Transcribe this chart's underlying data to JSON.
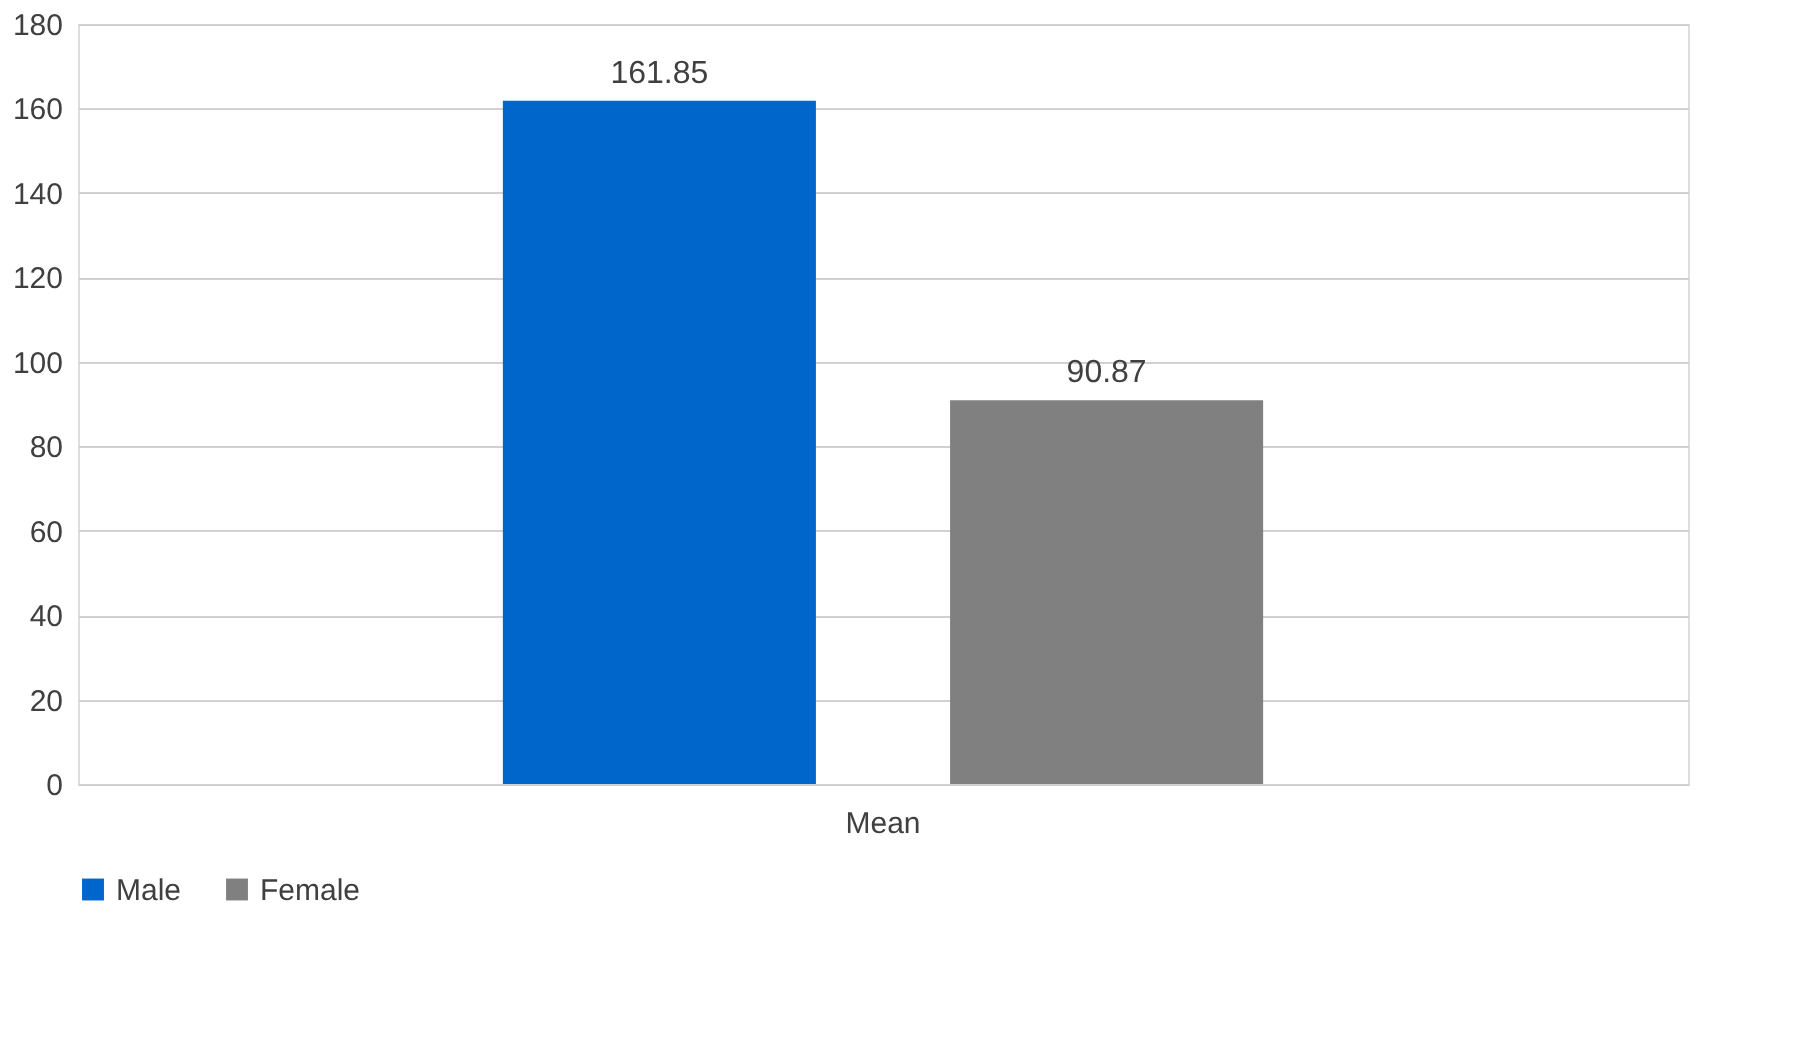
{
  "chart_data": {
    "type": "bar",
    "categories": [
      "Mean"
    ],
    "series": [
      {
        "name": "Male",
        "color": "#0066cc",
        "values": [
          161.85
        ]
      },
      {
        "name": "Female",
        "color": "#808080",
        "values": [
          90.87
        ]
      }
    ],
    "ylim": [
      0,
      180
    ],
    "yticks": [
      0,
      20,
      40,
      60,
      80,
      100,
      120,
      140,
      160,
      180
    ],
    "grid": "y",
    "legend": "bottom",
    "data_labels": true
  }
}
